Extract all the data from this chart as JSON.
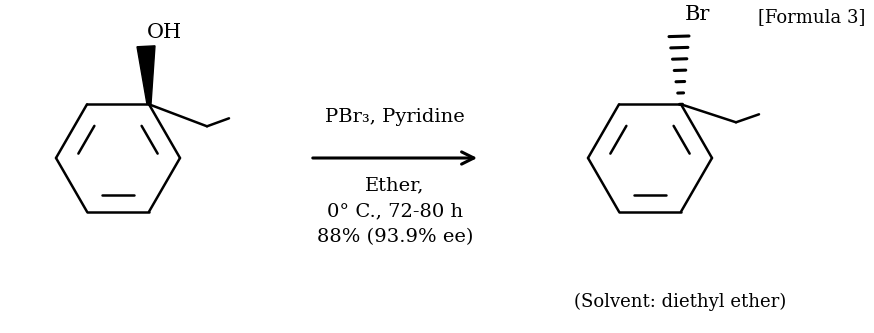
{
  "title": "[Formula 3]",
  "reagent_line1": "PBr₃, Pyridine",
  "reagent_line2": "Ether,",
  "reagent_line3": "0° C., 72-80 h",
  "reagent_line4": "88% (93.9% ee)",
  "solvent_note": "(Solvent: diethyl ether)",
  "background_color": "#ffffff",
  "line_color": "#000000",
  "font_size": 13,
  "title_font_size": 13
}
